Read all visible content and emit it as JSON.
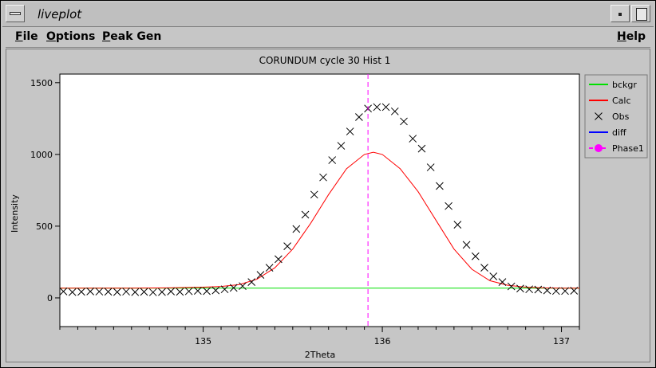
{
  "window": {
    "title": "liveplot"
  },
  "menubar": {
    "items": [
      {
        "label": "File",
        "key": "F",
        "rest": "ile"
      },
      {
        "label": "Options",
        "key": "O",
        "rest": "ptions"
      },
      {
        "label": "Peak Gen",
        "key": "P",
        "rest": "eak Gen"
      }
    ],
    "help": {
      "label": "Help",
      "key": "H",
      "rest": "elp"
    }
  },
  "icons": {
    "window_menu": "window-menu-icon",
    "minimize": "minimize-icon",
    "maximize": "maximize-icon"
  },
  "chart_data": {
    "type": "scatter",
    "title": "CORUNDUM cycle 30 Hist 1",
    "xlabel": "2Theta",
    "ylabel": "Intensity",
    "xlim": [
      134.2,
      137.1
    ],
    "ylim": [
      -200,
      1560
    ],
    "xticks": [
      135,
      136,
      137
    ],
    "yticks": [
      0,
      500,
      1000,
      1500
    ],
    "xminor_step": 0.1,
    "grid": false,
    "legend_position": "right",
    "legend": [
      {
        "name": "bckgr",
        "color": "#00e000",
        "symbol": "line"
      },
      {
        "name": "Calc",
        "color": "#ff0000",
        "symbol": "line"
      },
      {
        "name": "Obs",
        "color": "#000000",
        "symbol": "cross"
      },
      {
        "name": "diff",
        "color": "#0000ff",
        "symbol": "line"
      },
      {
        "name": "Phase1",
        "color": "#ff00ff",
        "symbol": "dashed-dot"
      }
    ],
    "series": [
      {
        "name": "bckgr",
        "color": "#00e000",
        "x": [
          134.2,
          137.1
        ],
        "y": [
          68,
          68
        ]
      },
      {
        "name": "Calc",
        "color": "#ff0000",
        "x": [
          134.2,
          134.4,
          134.6,
          134.8,
          135.0,
          135.1,
          135.2,
          135.3,
          135.4,
          135.5,
          135.6,
          135.7,
          135.8,
          135.9,
          135.95,
          136.0,
          136.1,
          136.2,
          136.3,
          136.4,
          136.5,
          136.6,
          136.7,
          136.8,
          136.9,
          137.0,
          137.1
        ],
        "y": [
          68,
          68,
          68,
          70,
          75,
          80,
          92,
          130,
          210,
          340,
          520,
          720,
          900,
          1000,
          1015,
          1000,
          900,
          740,
          540,
          340,
          200,
          120,
          88,
          75,
          70,
          68,
          68
        ]
      },
      {
        "name": "Obs",
        "color": "#000000",
        "symbol": "cross",
        "x": [
          134.22,
          134.27,
          134.32,
          134.37,
          134.42,
          134.47,
          134.52,
          134.57,
          134.62,
          134.67,
          134.72,
          134.77,
          134.82,
          134.87,
          134.92,
          134.97,
          135.02,
          135.07,
          135.12,
          135.17,
          135.22,
          135.27,
          135.32,
          135.37,
          135.42,
          135.47,
          135.52,
          135.57,
          135.62,
          135.67,
          135.72,
          135.77,
          135.82,
          135.87,
          135.92,
          135.97,
          136.02,
          136.07,
          136.12,
          136.17,
          136.22,
          136.27,
          136.32,
          136.37,
          136.42,
          136.47,
          136.52,
          136.57,
          136.62,
          136.67,
          136.72,
          136.77,
          136.82,
          136.87,
          136.92,
          136.97,
          137.02,
          137.07
        ],
        "y": [
          45,
          40,
          42,
          45,
          44,
          43,
          41,
          44,
          40,
          42,
          39,
          41,
          45,
          42,
          46,
          49,
          47,
          52,
          60,
          70,
          82,
          110,
          160,
          210,
          270,
          360,
          480,
          580,
          720,
          840,
          960,
          1060,
          1160,
          1260,
          1320,
          1330,
          1330,
          1300,
          1230,
          1110,
          1040,
          910,
          780,
          640,
          510,
          370,
          290,
          210,
          150,
          110,
          80,
          65,
          60,
          58,
          52,
          48,
          48,
          50
        ]
      },
      {
        "name": "diff",
        "color": "#0000ff",
        "x": [],
        "y": []
      },
      {
        "name": "Phase1",
        "color": "#ff00ff",
        "marker_x": 135.92
      }
    ]
  }
}
